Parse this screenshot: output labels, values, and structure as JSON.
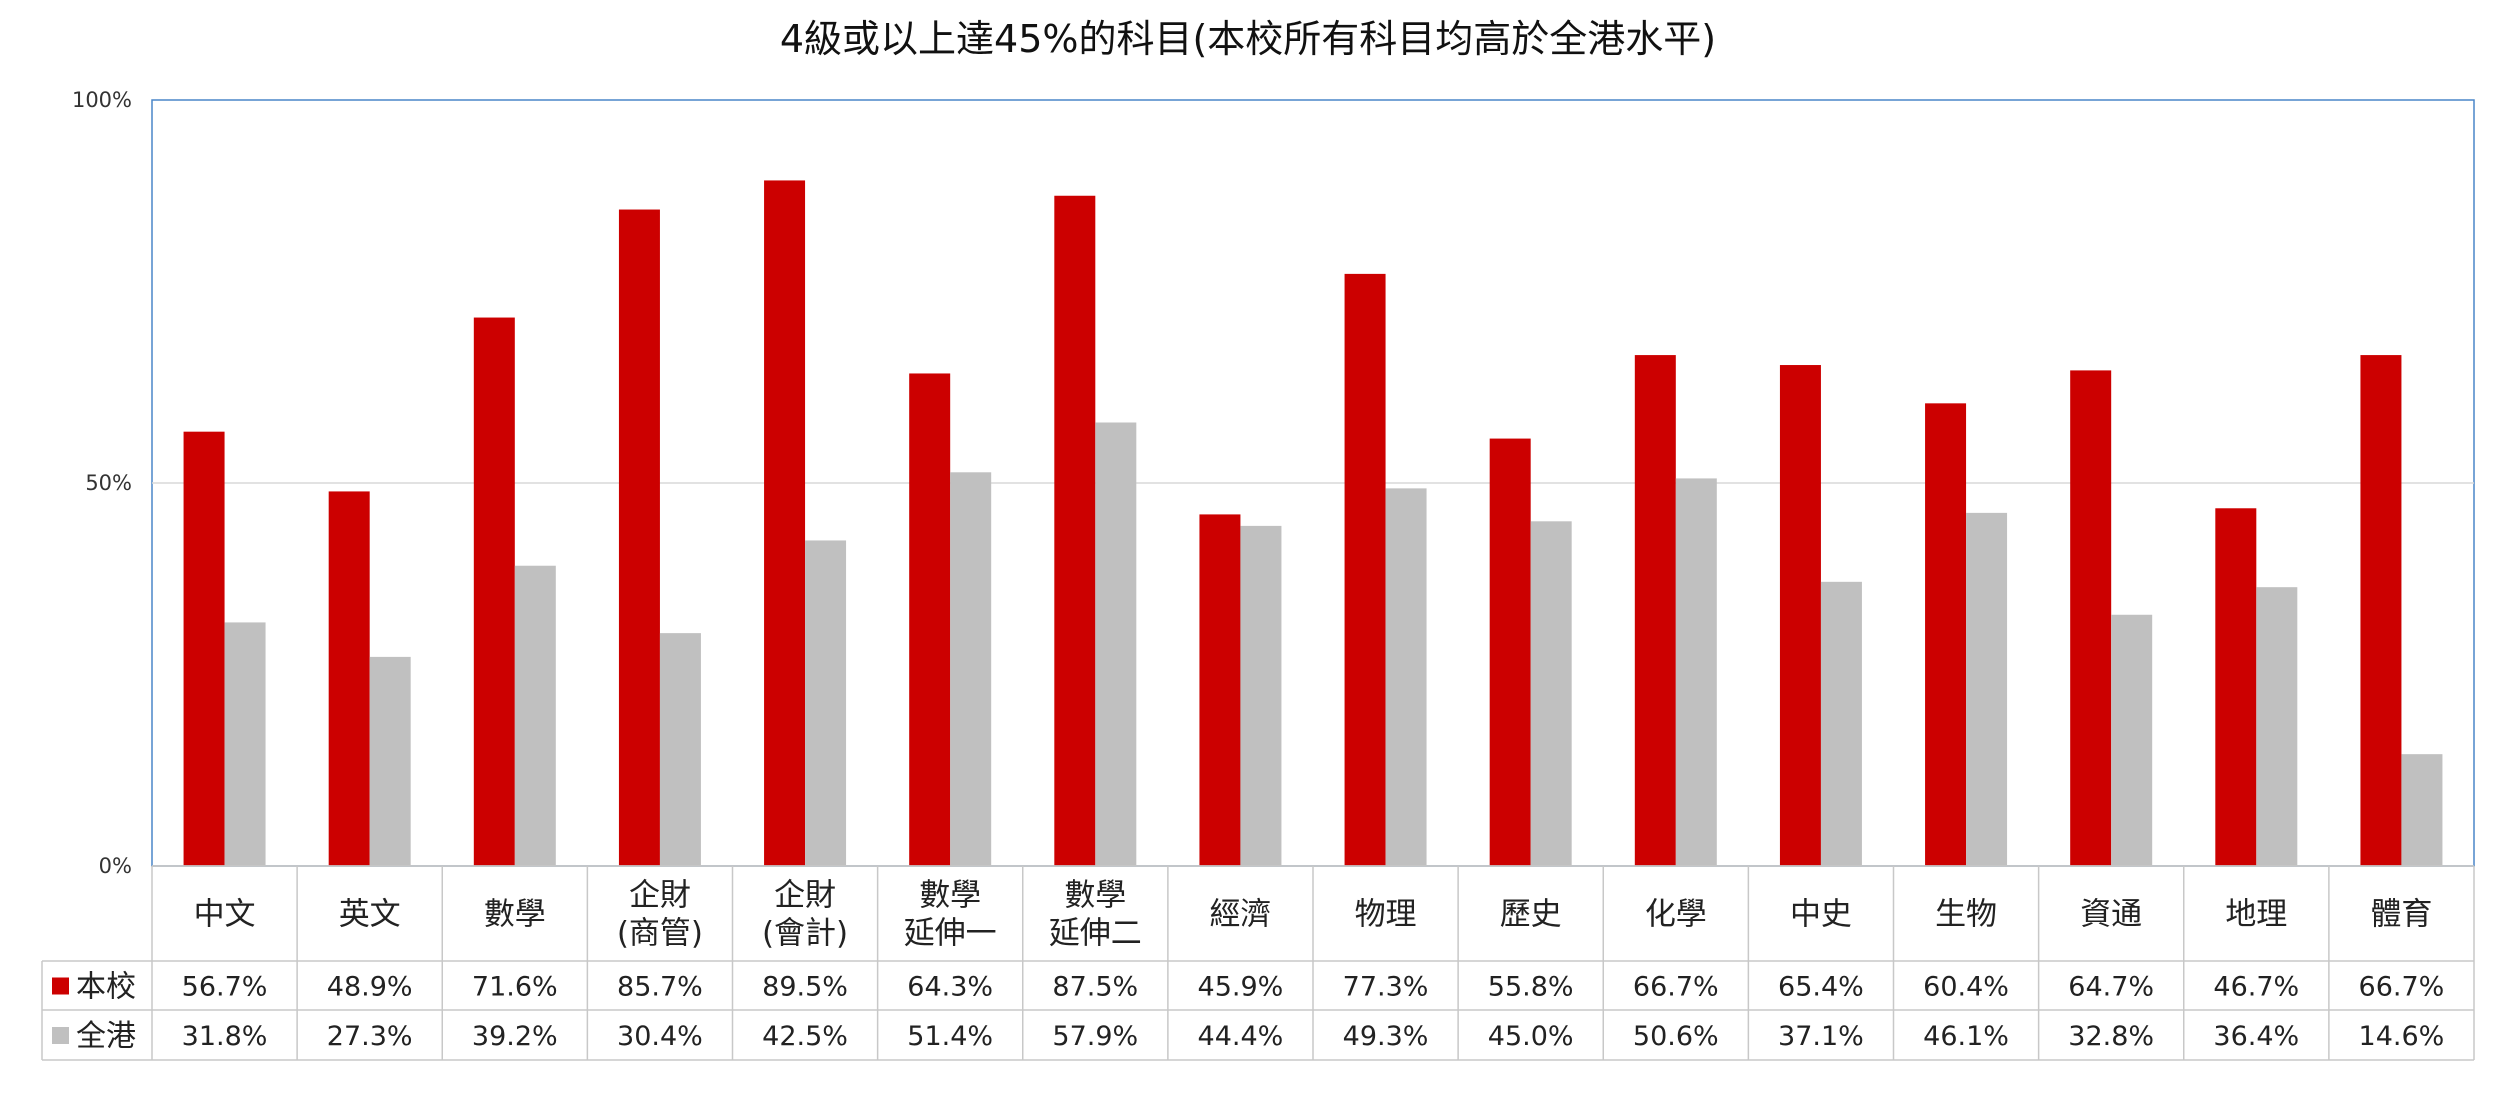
{
  "chart_data": {
    "type": "bar",
    "title": "4級或以上達45%的科目(本校所有科目均高於全港水平)",
    "categories": [
      [
        "中文"
      ],
      [
        "英文"
      ],
      [
        "數學"
      ],
      [
        "企財",
        "(商管)"
      ],
      [
        "企財",
        "(會計)"
      ],
      [
        "數學",
        "延伸一"
      ],
      [
        "數學",
        "延伸二"
      ],
      [
        "經濟"
      ],
      [
        "物理"
      ],
      [
        "歷史"
      ],
      [
        "化學"
      ],
      [
        "中史"
      ],
      [
        "生物"
      ],
      [
        "資通"
      ],
      [
        "地理"
      ],
      [
        "體育"
      ]
    ],
    "series": [
      {
        "name": "本校",
        "color": "#cc0000",
        "values": [
          56.7,
          48.9,
          71.6,
          85.7,
          89.5,
          64.3,
          87.5,
          45.9,
          77.3,
          55.8,
          66.7,
          65.4,
          60.4,
          64.7,
          46.7,
          66.7
        ],
        "labels": [
          "56.7%",
          "48.9%",
          "71.6%",
          "85.7%",
          "89.5%",
          "64.3%",
          "87.5%",
          "45.9%",
          "77.3%",
          "55.8%",
          "66.7%",
          "65.4%",
          "60.4%",
          "64.7%",
          "46.7%",
          "66.7%"
        ]
      },
      {
        "name": "全港",
        "color": "#c0c0c0",
        "values": [
          31.8,
          27.3,
          39.2,
          30.4,
          42.5,
          51.4,
          57.9,
          44.4,
          49.3,
          45.0,
          50.6,
          37.1,
          46.1,
          32.8,
          36.4,
          14.6
        ],
        "labels": [
          "31.8%",
          "27.3%",
          "39.2%",
          "30.4%",
          "42.5%",
          "51.4%",
          "57.9%",
          "44.4%",
          "49.3%",
          "45.0%",
          "50.6%",
          "37.1%",
          "46.1%",
          "32.8%",
          "36.4%",
          "14.6%"
        ]
      }
    ],
    "y_ticks": [
      "0%",
      "50%",
      "100%"
    ],
    "ylim": [
      0,
      100
    ],
    "grid": true,
    "legend": "data-table"
  }
}
